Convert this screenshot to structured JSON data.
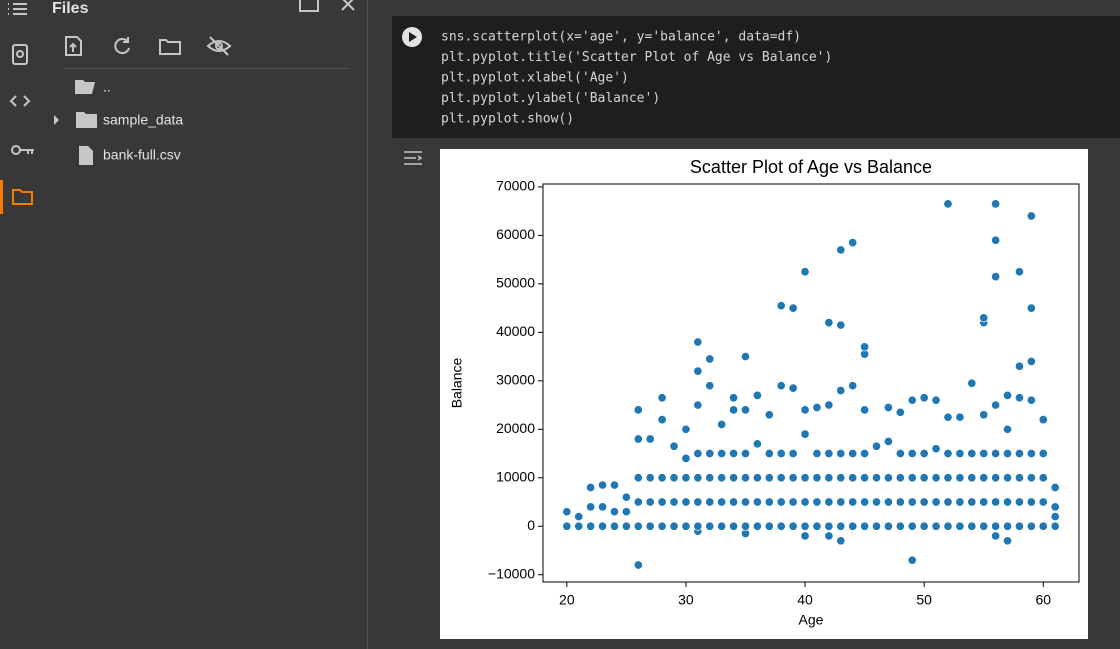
{
  "sidebar": {
    "title": "Files",
    "items": [
      "..",
      "sample_data",
      "bank-full.csv"
    ]
  },
  "code": {
    "lines": [
      "sns.scatterplot(x='age', y='balance', data=df)",
      "plt.pyplot.title('Scatter Plot of Age vs Balance')",
      "plt.pyplot.xlabel('Age')",
      "plt.pyplot.ylabel('Balance')",
      "plt.pyplot.show()"
    ]
  },
  "chart_data": {
    "type": "scatter",
    "title": "Scatter Plot of Age vs Balance",
    "xlabel": "Age",
    "ylabel": "Balance",
    "color": "#1f77b4",
    "xlim": [
      18,
      63
    ],
    "ylim": [
      -11500,
      70600
    ],
    "xticks": [
      20,
      30,
      40,
      50,
      60
    ],
    "yticks": [
      {
        "value": -10000,
        "label": "−10000"
      },
      0,
      10000,
      20000,
      30000,
      40000,
      50000,
      60000,
      70000
    ],
    "x": [
      20,
      20,
      21,
      21,
      22,
      22,
      22,
      23,
      23,
      23,
      24,
      24,
      24,
      25,
      25,
      25,
      26,
      26,
      26,
      26,
      26,
      26,
      27,
      27,
      27,
      27,
      28,
      28,
      28,
      28,
      28,
      29,
      29,
      29,
      29,
      30,
      30,
      30,
      30,
      30,
      31,
      31,
      31,
      31,
      31,
      31,
      31,
      31,
      32,
      32,
      32,
      32,
      32,
      32,
      33,
      33,
      33,
      33,
      33,
      34,
      34,
      34,
      34,
      34,
      34,
      35,
      35,
      35,
      35,
      35,
      35,
      35,
      36,
      36,
      36,
      36,
      36,
      37,
      37,
      37,
      37,
      37,
      38,
      38,
      38,
      38,
      38,
      38,
      39,
      39,
      39,
      39,
      39,
      39,
      40,
      40,
      40,
      40,
      40,
      40,
      40,
      41,
      41,
      41,
      41,
      41,
      42,
      42,
      42,
      42,
      42,
      42,
      42,
      43,
      43,
      43,
      43,
      43,
      43,
      43,
      43,
      44,
      44,
      44,
      44,
      44,
      44,
      45,
      45,
      45,
      45,
      45,
      45,
      45,
      46,
      46,
      46,
      46,
      47,
      47,
      47,
      47,
      47,
      48,
      48,
      48,
      48,
      48,
      49,
      49,
      49,
      49,
      49,
      49,
      50,
      50,
      50,
      50,
      50,
      51,
      51,
      51,
      51,
      51,
      52,
      52,
      52,
      52,
      52,
      52,
      53,
      53,
      53,
      53,
      53,
      54,
      54,
      54,
      54,
      54,
      55,
      55,
      55,
      55,
      55,
      55,
      55,
      56,
      56,
      56,
      56,
      56,
      56,
      56,
      56,
      56,
      57,
      57,
      57,
      57,
      57,
      57,
      57,
      58,
      58,
      58,
      58,
      58,
      58,
      58,
      59,
      59,
      59,
      59,
      59,
      59,
      59,
      59,
      60,
      60,
      60,
      60,
      60,
      61,
      61,
      61,
      61
    ],
    "y": [
      0,
      3000,
      0,
      2000,
      0,
      4000,
      8000,
      0,
      4000,
      8500,
      0,
      3000,
      8500,
      0,
      3000,
      6000,
      -8000,
      0,
      5000,
      10000,
      18000,
      24000,
      0,
      5000,
      10000,
      18000,
      0,
      5000,
      10000,
      22000,
      26500,
      0,
      5000,
      10000,
      16500,
      0,
      5000,
      10000,
      14000,
      20000,
      -1000,
      0,
      5000,
      10000,
      15000,
      25000,
      32000,
      38000,
      0,
      5000,
      10000,
      15000,
      29000,
      34500,
      0,
      5000,
      10000,
      15000,
      21000,
      0,
      5000,
      10000,
      15000,
      24000,
      26500,
      -1500,
      0,
      5000,
      10000,
      15000,
      24000,
      35000,
      0,
      5000,
      10000,
      17000,
      27000,
      0,
      5000,
      10000,
      15000,
      23000,
      0,
      5000,
      10000,
      15000,
      29000,
      45500,
      0,
      5000,
      10000,
      15000,
      28500,
      45000,
      -2000,
      0,
      5000,
      10000,
      19000,
      24000,
      52500,
      0,
      5000,
      10000,
      15000,
      24500,
      -2000,
      0,
      5000,
      10000,
      15000,
      25000,
      42000,
      -3000,
      0,
      5000,
      10000,
      15000,
      28000,
      41500,
      57000,
      0,
      5000,
      10000,
      15000,
      29000,
      58500,
      0,
      5000,
      10000,
      15000,
      24000,
      35500,
      37000,
      0,
      5000,
      10000,
      16500,
      0,
      5000,
      10000,
      17500,
      24500,
      0,
      5000,
      10000,
      15000,
      23500,
      -7000,
      0,
      5000,
      10000,
      15000,
      26000,
      0,
      5000,
      10000,
      15000,
      26500,
      0,
      5000,
      10000,
      16000,
      26000,
      0,
      5000,
      10000,
      15000,
      22500,
      66500,
      0,
      5000,
      10000,
      15000,
      22500,
      0,
      5000,
      10000,
      15000,
      29500,
      0,
      5000,
      10000,
      15000,
      23000,
      42000,
      43000,
      -2000,
      0,
      5000,
      10000,
      15000,
      25000,
      51500,
      59000,
      66500,
      -3000,
      0,
      5000,
      10000,
      15000,
      20000,
      27000,
      0,
      5000,
      10000,
      15000,
      26500,
      33000,
      52500,
      0,
      5000,
      10000,
      15000,
      26000,
      34000,
      45000,
      64000,
      0,
      5000,
      10000,
      15000,
      22000,
      0,
      2000,
      4000,
      8000
    ]
  }
}
